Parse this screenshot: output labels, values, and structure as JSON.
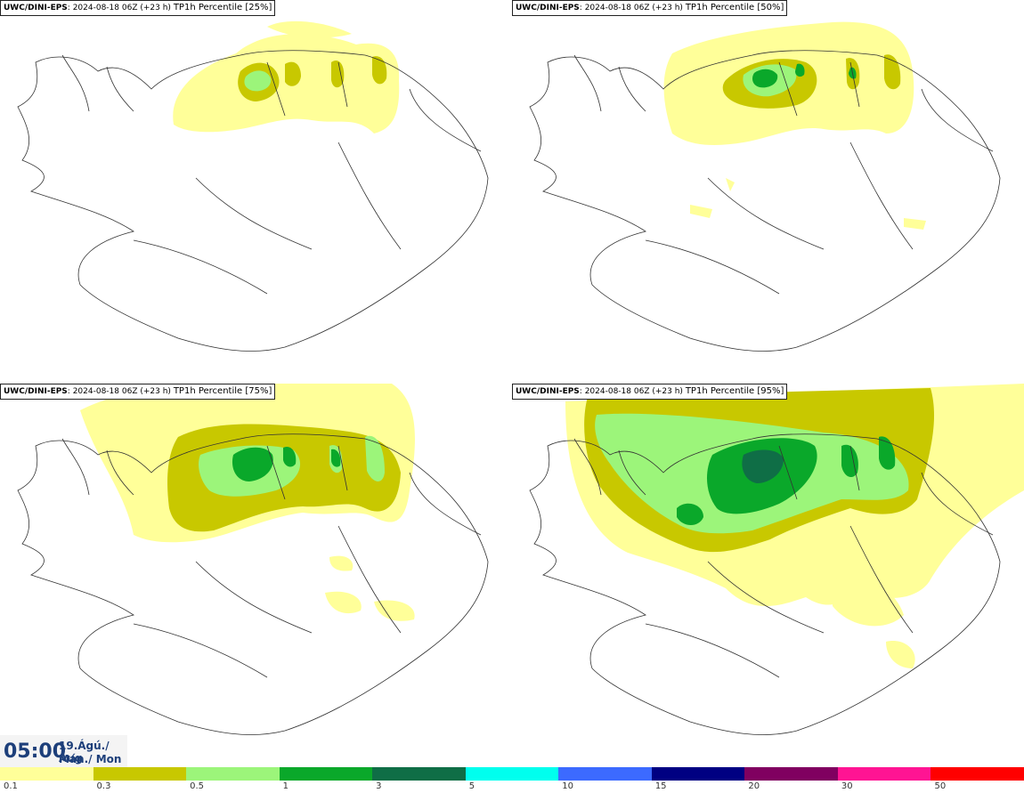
{
  "panels": [
    {
      "model": "UWC/DINI-EPS",
      "run": "2024-08-18 06Z (+23 h)",
      "field": "TP1h Percentile [25%]"
    },
    {
      "model": "UWC/DINI-EPS",
      "run": "2024-08-18 06Z (+23 h)",
      "field": "TP1h Percentile [50%]"
    },
    {
      "model": "UWC/DINI-EPS",
      "run": "2024-08-18 06Z (+23 h)",
      "field": "TP1h Percentile [75%]"
    },
    {
      "model": "UWC/DINI-EPS",
      "run": "2024-08-18 06Z (+23 h)",
      "field": "TP1h Percentile [95%]"
    }
  ],
  "valid": {
    "time": "05:00",
    "date_line1": "19.Ágú./ Aug",
    "date_line2": "Mán./ Mon"
  },
  "legend": {
    "labels": [
      "0.1",
      "0.3",
      "0.5",
      "1",
      "3",
      "5",
      "10",
      "15",
      "20",
      "30",
      "50"
    ],
    "colors": [
      "#ffff99",
      "#c8c800",
      "#9cf57a",
      "#0aa82a",
      "#0f6e46",
      "#00ffee",
      "#3c6aff",
      "#000082",
      "#800060",
      "#ff1493",
      "#ff0000"
    ]
  }
}
